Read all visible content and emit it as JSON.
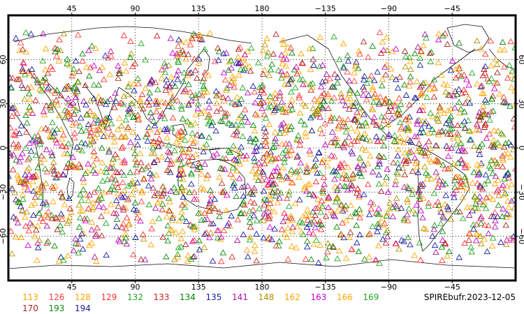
{
  "chart_data": {
    "type": "scatter",
    "projection": "cylindrical-equidistant",
    "marker": "open-triangle",
    "map_center_longitude": 180,
    "grid": true,
    "grid_style": "dotted",
    "x_ticks": [
      45,
      90,
      135,
      180,
      -135,
      -90,
      -45
    ],
    "x_tick_labels": [
      "45",
      "90",
      "135",
      "180",
      "−135",
      "−90",
      "−45"
    ],
    "y_ticks": [
      60,
      30,
      0,
      -30,
      -60
    ],
    "y_tick_labels": [
      "60",
      "30",
      "0",
      "−30",
      "−60"
    ],
    "lon_range": [
      0,
      360
    ],
    "lat_range": [
      -90,
      90
    ],
    "legend_placement": "bottom",
    "series": [
      {
        "name": "113",
        "color": "#ffa500"
      },
      {
        "name": "126",
        "color": "#ff4040"
      },
      {
        "name": "128",
        "color": "#ffa500"
      },
      {
        "name": "129",
        "color": "#ff3030"
      },
      {
        "name": "132",
        "color": "#22aa22"
      },
      {
        "name": "133",
        "color": "#cc2222"
      },
      {
        "name": "134",
        "color": "#008800"
      },
      {
        "name": "135",
        "color": "#1020aa"
      },
      {
        "name": "141",
        "color": "#aa10aa"
      },
      {
        "name": "148",
        "color": "#b09000"
      },
      {
        "name": "162",
        "color": "#ffa500"
      },
      {
        "name": "163",
        "color": "#cc00cc"
      },
      {
        "name": "166",
        "color": "#ffa500"
      },
      {
        "name": "169",
        "color": "#22aa22"
      },
      {
        "name": "170",
        "color": "#aa2020"
      },
      {
        "name": "193",
        "color": "#118811"
      },
      {
        "name": "194",
        "color": "#1a1a99"
      }
    ],
    "source_label": "SPIREbufr.2023-12-05"
  }
}
